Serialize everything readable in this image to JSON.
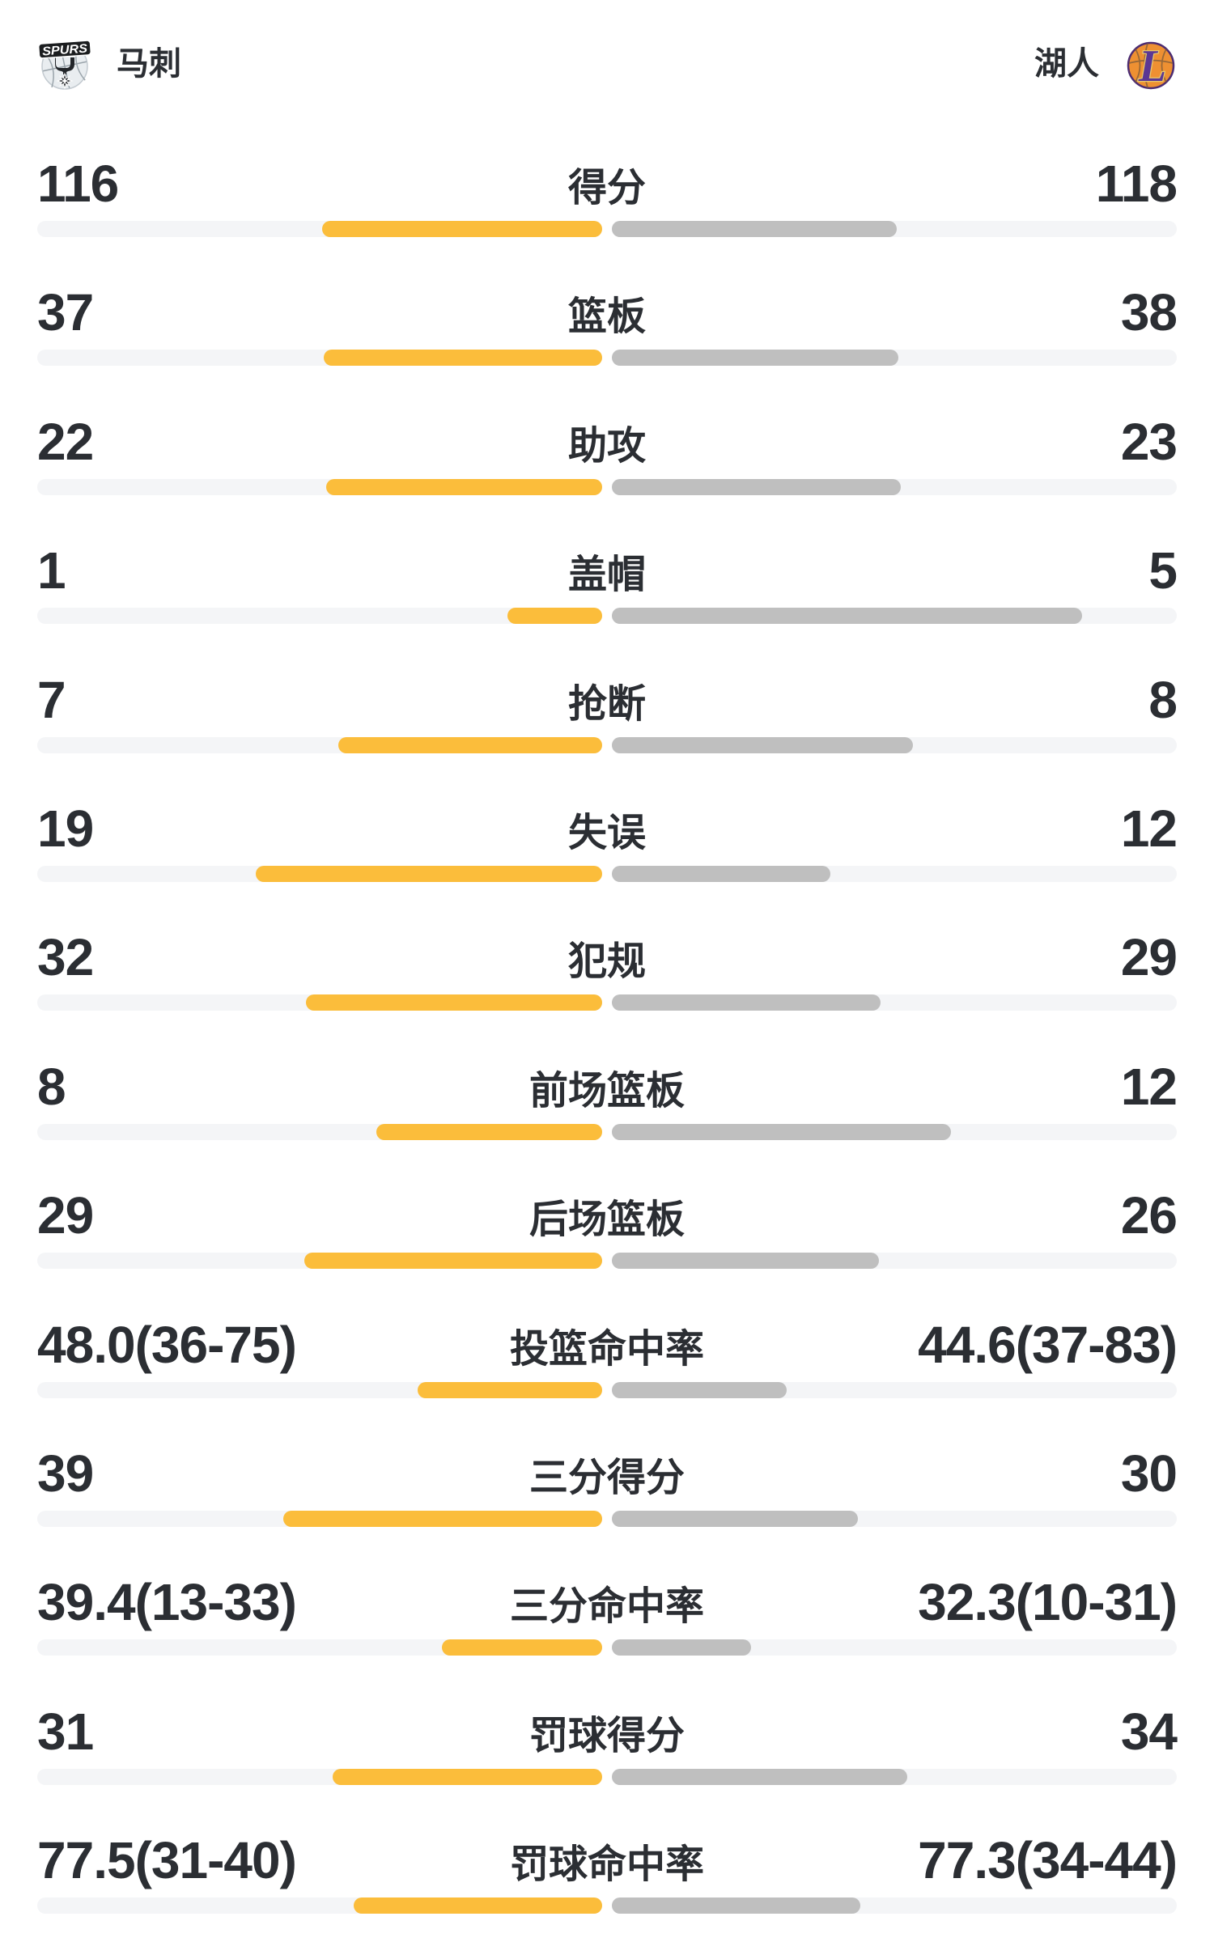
{
  "header": {
    "left_team": {
      "name": "马刺",
      "logo": "spurs-logo"
    },
    "right_team": {
      "name": "湖人",
      "logo": "lakers-logo"
    }
  },
  "colors": {
    "left_bar": "#fbbd3b",
    "right_bar": "#bfbfbf",
    "track": "#f4f5f7",
    "text": "#2b2e33",
    "lakers_orange": "#ee9032",
    "lakers_purple": "#5b3794",
    "lakers_gold": "#e8c86b",
    "spurs_silver": "#e9edf0",
    "spurs_black": "#1b1d1f"
  },
  "chart_data": {
    "type": "bar",
    "variant": "paired-horizontal-comparison",
    "teams": [
      "马刺",
      "湖人"
    ],
    "legend_position": "none",
    "grid": false,
    "rows": [
      {
        "label": "得分",
        "left": "116",
        "right": "118",
        "left_value": 116,
        "right_value": 118,
        "left_fill_pct": 49.6,
        "right_fill_pct": 50.4
      },
      {
        "label": "篮板",
        "left": "37",
        "right": "38",
        "left_value": 37,
        "right_value": 38,
        "left_fill_pct": 49.3,
        "right_fill_pct": 50.7
      },
      {
        "label": "助攻",
        "left": "22",
        "right": "23",
        "left_value": 22,
        "right_value": 23,
        "left_fill_pct": 48.9,
        "right_fill_pct": 51.1
      },
      {
        "label": "盖帽",
        "left": "1",
        "right": "5",
        "left_value": 1,
        "right_value": 5,
        "left_fill_pct": 16.7,
        "right_fill_pct": 83.3
      },
      {
        "label": "抢断",
        "left": "7",
        "right": "8",
        "left_value": 7,
        "right_value": 8,
        "left_fill_pct": 46.7,
        "right_fill_pct": 53.3
      },
      {
        "label": "失误",
        "left": "19",
        "right": "12",
        "left_value": 19,
        "right_value": 12,
        "left_fill_pct": 61.3,
        "right_fill_pct": 38.7
      },
      {
        "label": "犯规",
        "left": "32",
        "right": "29",
        "left_value": 32,
        "right_value": 29,
        "left_fill_pct": 52.5,
        "right_fill_pct": 47.5
      },
      {
        "label": "前场篮板",
        "left": "8",
        "right": "12",
        "left_value": 8,
        "right_value": 12,
        "left_fill_pct": 40.0,
        "right_fill_pct": 60.0
      },
      {
        "label": "后场篮板",
        "left": "29",
        "right": "26",
        "left_value": 29,
        "right_value": 26,
        "left_fill_pct": 52.7,
        "right_fill_pct": 47.3
      },
      {
        "label": "投篮命中率",
        "left": "48.0(36-75)",
        "right": "44.6(37-83)",
        "left_value": 48.0,
        "right_value": 44.6,
        "left_made": 36,
        "left_att": 75,
        "right_made": 37,
        "right_att": 83,
        "left_fill_pct": 32.6,
        "right_fill_pct": 30.9
      },
      {
        "label": "三分得分",
        "left": "39",
        "right": "30",
        "left_value": 39,
        "right_value": 30,
        "left_fill_pct": 56.5,
        "right_fill_pct": 43.5
      },
      {
        "label": "三分命中率",
        "left": "39.4(13-33)",
        "right": "32.3(10-31)",
        "left_value": 39.4,
        "right_value": 32.3,
        "left_made": 13,
        "left_att": 33,
        "right_made": 10,
        "right_att": 31,
        "left_fill_pct": 28.4,
        "right_fill_pct": 24.7
      },
      {
        "label": "罚球得分",
        "left": "31",
        "right": "34",
        "left_value": 31,
        "right_value": 34,
        "left_fill_pct": 47.7,
        "right_fill_pct": 52.3
      },
      {
        "label": "罚球命中率",
        "left": "77.5(31-40)",
        "right": "77.3(34-44)",
        "left_value": 77.5,
        "right_value": 77.3,
        "left_made": 31,
        "left_att": 40,
        "right_made": 34,
        "right_att": 44,
        "left_fill_pct": 44.0,
        "right_fill_pct": 44.0
      }
    ]
  }
}
